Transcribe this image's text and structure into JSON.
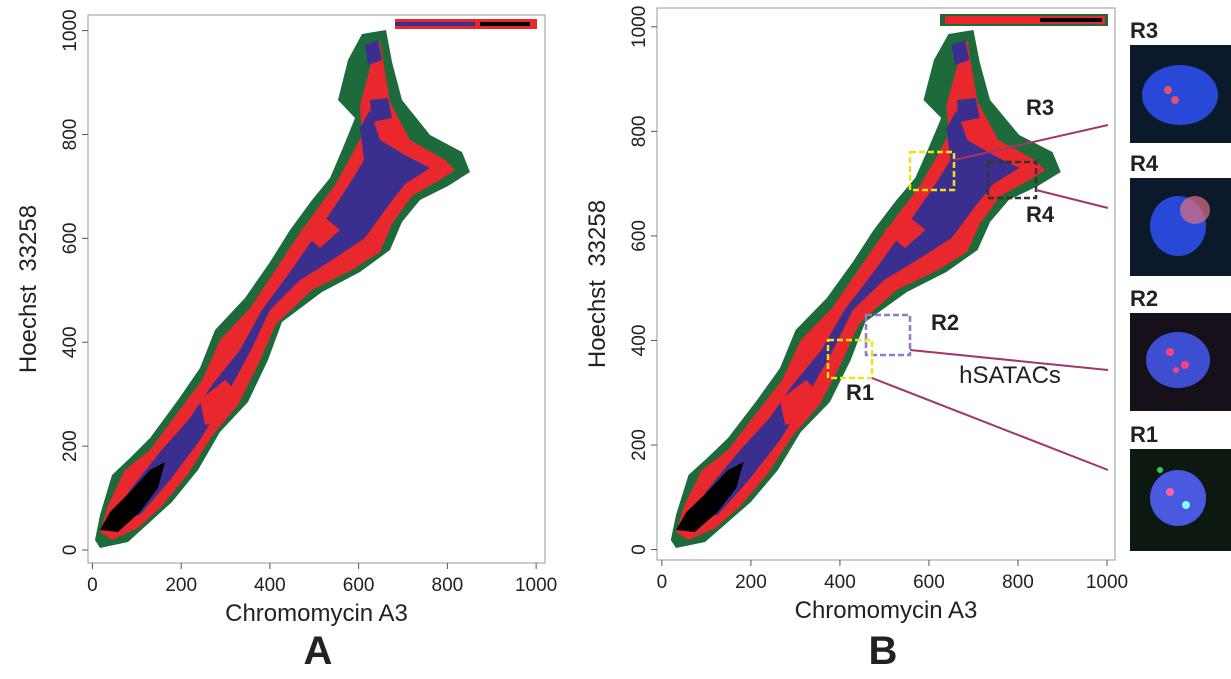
{
  "chart_data": [
    {
      "type": "density",
      "panel": "A",
      "xlabel": "Chromomycin A3",
      "ylabel": "Hoechst  33258",
      "xlim": [
        -10,
        1020
      ],
      "ylim": [
        -25,
        1030
      ],
      "xticks": [
        0,
        200,
        400,
        600,
        800,
        1000
      ],
      "yticks": [
        0,
        200,
        400,
        600,
        800,
        1000
      ]
    },
    {
      "type": "density",
      "panel": "B",
      "xlabel": "Chromomycin A3",
      "ylabel": "Hoechst  33258",
      "xlim": [
        -11,
        1018
      ],
      "ylim": [
        -20,
        1036
      ],
      "xticks": [
        0,
        200,
        400,
        600,
        800,
        1000
      ],
      "yticks": [
        0,
        200,
        400,
        600,
        800,
        1000
      ],
      "annotations": [
        "R3",
        "R4",
        "R2",
        "hSATACs",
        "R1"
      ]
    }
  ],
  "micrographs": [
    "R3",
    "R4",
    "R2",
    "R1"
  ]
}
